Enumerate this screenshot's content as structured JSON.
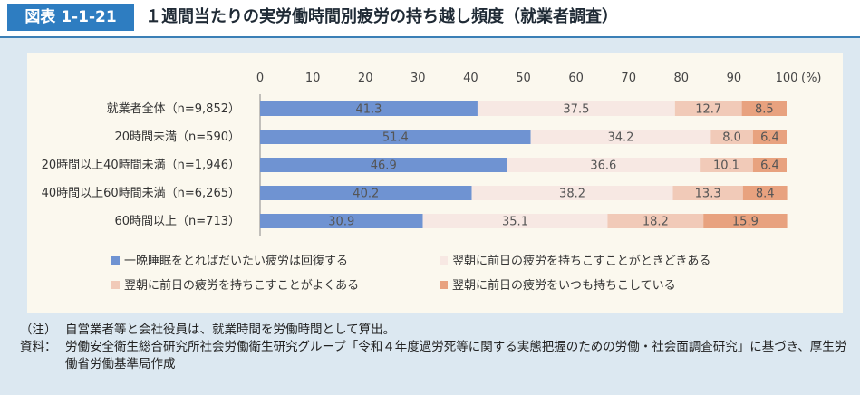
{
  "header": {
    "fig_id": "図表 1-1-21",
    "title": "１週間当たりの実労働時間別疲労の持ち越し頻度（就業者調査）"
  },
  "chart_data": {
    "type": "bar",
    "orientation": "horizontal",
    "stacked": true,
    "unit": "(%)",
    "xlim": [
      0,
      100
    ],
    "ticks": [
      0,
      10,
      20,
      30,
      40,
      50,
      60,
      70,
      80,
      90,
      100
    ],
    "tick_labels": [
      "0",
      "10",
      "20",
      "30",
      "40",
      "50",
      "60",
      "70",
      "80",
      "90",
      "100"
    ],
    "categories": [
      "就業者全体（n=9,852）",
      "20時間未満（n=590）",
      "20時間以上40時間未満（n=1,946）",
      "40時間以上60時間未満（n=6,265）",
      "60時間以上（n=713）"
    ],
    "series": [
      {
        "name": "一晩睡眠をとればだいたい疲労は回復する",
        "color": "#6f93d2",
        "values": [
          41.3,
          51.4,
          46.9,
          40.2,
          30.9
        ]
      },
      {
        "name": "翌朝に前日の疲労を持ちこすことがときどきある",
        "color": "#f7e8e3",
        "values": [
          37.5,
          34.2,
          36.6,
          38.2,
          35.1
        ]
      },
      {
        "name": "翌朝に前日の疲労を持ちこすことがよくある",
        "color": "#f1cab8",
        "values": [
          12.7,
          8.0,
          10.1,
          13.3,
          18.2
        ]
      },
      {
        "name": "翌朝に前日の疲労をいつも持ちこしている",
        "color": "#e8a27f",
        "values": [
          8.5,
          6.4,
          6.4,
          8.4,
          15.9
        ]
      }
    ],
    "legend_position": "bottom",
    "grid": false
  },
  "notes": {
    "note_label": "（注）",
    "note_text": "自営業者等と会社役員は、就業時間を労働時間として算出。",
    "source_label": "資料：",
    "source_text": "労働安全衛生総合研究所社会労働衛生研究グループ「令和４年度過労死等に関する実態把握のための労働・社会面調査研究」に基づき、厚生労働省労働基準局作成"
  }
}
